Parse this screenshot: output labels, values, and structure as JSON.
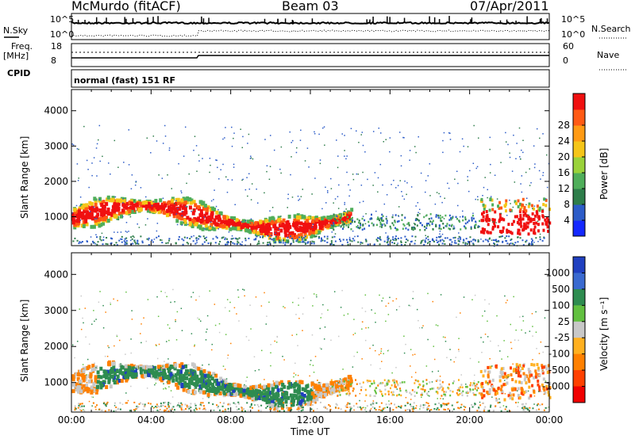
{
  "header": {
    "station": "McMurdo (fitACF)",
    "beam": "Beam 03",
    "date": "07/Apr/2011"
  },
  "top_panels": {
    "nsky_label": "N.Sky",
    "nsky_ticks": [
      "10^5",
      "10^0"
    ],
    "nsearch_label": "N.Search",
    "nsearch_ticks": [
      "10^5",
      "10^0"
    ],
    "freq_label": "Freq.",
    "freq_unit": "[MHz]",
    "freq_ticks": [
      "18",
      "8"
    ],
    "nave_label": "Nave",
    "nave_ticks": [
      "60",
      "0"
    ],
    "cpid_label": "CPID",
    "cpid_value": "normal (fast) 151 RF"
  },
  "colors": {
    "power": [
      "#1428ff",
      "#2c5cc8",
      "#2e7d4a",
      "#4fae5a",
      "#9ad23a",
      "#f5c518",
      "#ff9a14",
      "#ff5a14",
      "#f01010"
    ],
    "velocity": [
      "#2040c0",
      "#3a6ad0",
      "#2e8c50",
      "#62c040",
      "#c8c8c8",
      "#ffb020",
      "#ff8000",
      "#ff4000",
      "#f00000"
    ]
  },
  "chart_data": [
    {
      "type": "heatmap",
      "title": "",
      "xlabel": "Time UT",
      "ylabel": "Slant Range [km]",
      "x_ticks": [
        "00:00",
        "04:00",
        "08:00",
        "12:00",
        "16:00",
        "20:00",
        "00:00"
      ],
      "x_range_hours": [
        0,
        24
      ],
      "y_ticks": [
        "1000",
        "2000",
        "3000",
        "4000"
      ],
      "ylim": [
        180,
        4600
      ],
      "colorbar_label": "Power [dB]",
      "colorbar_ticks": [
        "4",
        "8",
        "12",
        "16",
        "20",
        "24",
        "28"
      ],
      "colorbar_range": [
        0,
        30
      ],
      "scatter_region": {
        "hours": [
          0,
          14
        ],
        "range_km": [
          500,
          1800
        ],
        "core_power_db": 28
      }
    },
    {
      "type": "heatmap",
      "title": "",
      "xlabel": "Time UT",
      "ylabel": "Slant Range [km]",
      "x_ticks": [
        "00:00",
        "04:00",
        "08:00",
        "12:00",
        "16:00",
        "20:00",
        "00:00"
      ],
      "x_range_hours": [
        0,
        24
      ],
      "y_ticks": [
        "1000",
        "2000",
        "3000",
        "4000"
      ],
      "ylim": [
        180,
        4600
      ],
      "colorbar_label": "Velocity [m s⁻¹]",
      "colorbar_ticks": [
        "1000",
        "500",
        "100",
        "25",
        "-25",
        "-100",
        "-500",
        "-1000"
      ],
      "scatter_region": {
        "hours": [
          0,
          14
        ],
        "range_km": [
          500,
          1800
        ],
        "core_velocity_ms": 100
      }
    }
  ]
}
